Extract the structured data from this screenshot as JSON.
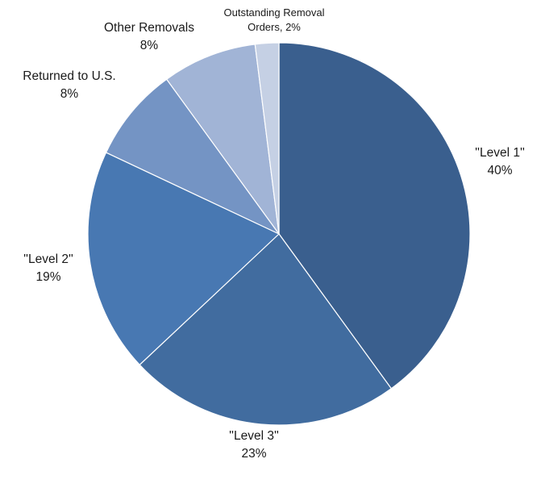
{
  "chart_data": {
    "type": "pie",
    "title": "",
    "start": "12 o'clock",
    "direction": "clockwise",
    "slices": [
      {
        "name_lines": [
          "''Level 1''"
        ],
        "value": 40,
        "value_label": "40%",
        "color": "#3A5F8E"
      },
      {
        "name_lines": [
          "''Level 3''"
        ],
        "value": 23,
        "value_label": "23%",
        "color": "#416C9F"
      },
      {
        "name_lines": [
          "''Level 2''"
        ],
        "value": 19,
        "value_label": "19%",
        "color": "#4878B2"
      },
      {
        "name_lines": [
          "Returned to U.S."
        ],
        "value": 8,
        "value_label": "8%",
        "color": "#7494C4"
      },
      {
        "name_lines": [
          "Other Removals"
        ],
        "value": 8,
        "value_label": "8%",
        "color": "#A1B4D6"
      },
      {
        "name_lines": [
          "Outstanding Removal",
          "Orders, 2%"
        ],
        "value": 2,
        "value_label": "",
        "color": "#C5D0E4"
      }
    ]
  }
}
